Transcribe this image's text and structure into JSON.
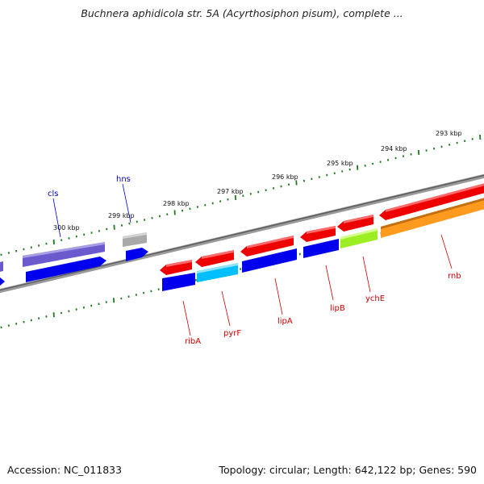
{
  "title": "Buchnera aphidicola str. 5A (Acyrthosiphon pisum), complete ...",
  "accession_text": "Accession: NC_011833",
  "summary_text": "Topology: circular; Length: 642,122 bp; Genes: 590",
  "ticks": [
    "300 kbp",
    "299 kbp",
    "298 kbp",
    "297 kbp",
    "296 kbp",
    "295 kbp",
    "294 kbp",
    "293 kbp"
  ],
  "labels": {
    "cls": "cls",
    "hns": "hns",
    "ribA": "ribA",
    "pyrF": "pyrF",
    "lipA": "lipA",
    "lipB": "lipB",
    "ychE": "ychE",
    "rnb": "rnb"
  },
  "colors": {
    "backbone": "#808080",
    "tick": "#1e7a1e",
    "red": "#ee0000",
    "blue": "#0000ee",
    "slate": "#6a5acd",
    "gray": "#a9a9a9",
    "cyan": "#00bfff",
    "lime": "#9aee22",
    "orange": "#ff9a1e",
    "label_blue": "#0000cc",
    "label_red": "#cc0000"
  }
}
